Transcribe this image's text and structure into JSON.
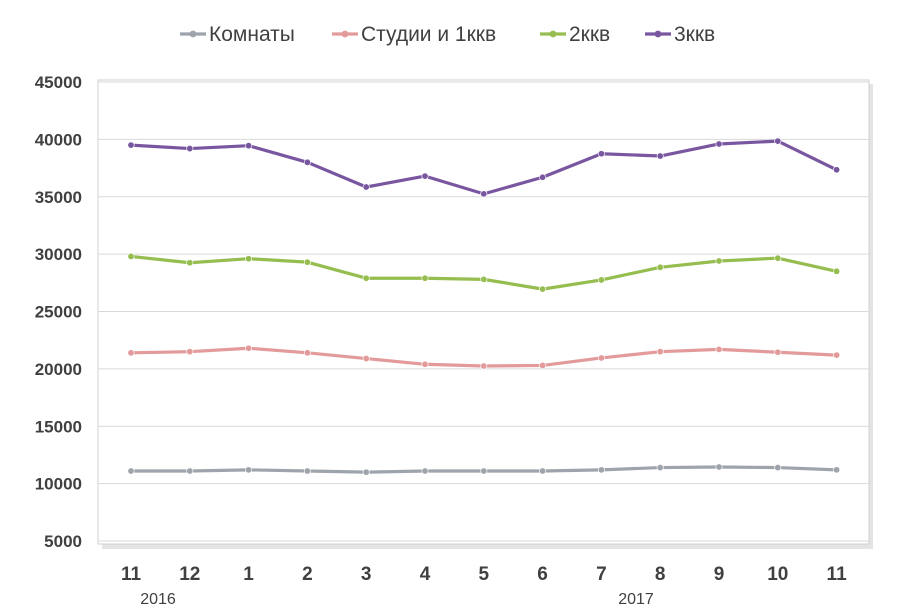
{
  "chart_data": {
    "type": "line",
    "title": "",
    "xlabel": "",
    "ylabel": "",
    "categories": [
      "11",
      "12",
      "1",
      "2",
      "3",
      "4",
      "5",
      "6",
      "7",
      "8",
      "9",
      "10",
      "11"
    ],
    "year_labels": [
      {
        "index": 0,
        "text": "2016"
      },
      {
        "index": 9,
        "text": "2017"
      }
    ],
    "ylim": [
      5000,
      45000
    ],
    "yticks": [
      5000,
      10000,
      15000,
      20000,
      25000,
      30000,
      35000,
      40000,
      45000
    ],
    "grid": true,
    "legend_position": "top",
    "series": [
      {
        "name": "Комнаты",
        "color": "#9ea4ab",
        "values": [
          11100,
          11100,
          11200,
          11100,
          11000,
          11100,
          11100,
          11100,
          11200,
          11400,
          11450,
          11400,
          11200
        ]
      },
      {
        "name": "Студии и 1ккв",
        "color": "#e39a9a",
        "values": [
          21400,
          21500,
          21800,
          21400,
          20900,
          20400,
          20250,
          20300,
          20950,
          21500,
          21700,
          21450,
          21200
        ]
      },
      {
        "name": "2ккв",
        "color": "#96bd4f",
        "values": [
          29800,
          29250,
          29600,
          29300,
          27900,
          27900,
          27800,
          26950,
          27750,
          28850,
          29400,
          29650,
          28500
        ]
      },
      {
        "name": "3ккв",
        "color": "#7956a0",
        "values": [
          39500,
          39200,
          39450,
          38000,
          35850,
          36800,
          35250,
          36700,
          38750,
          38550,
          39600,
          39850,
          37350
        ]
      }
    ]
  }
}
